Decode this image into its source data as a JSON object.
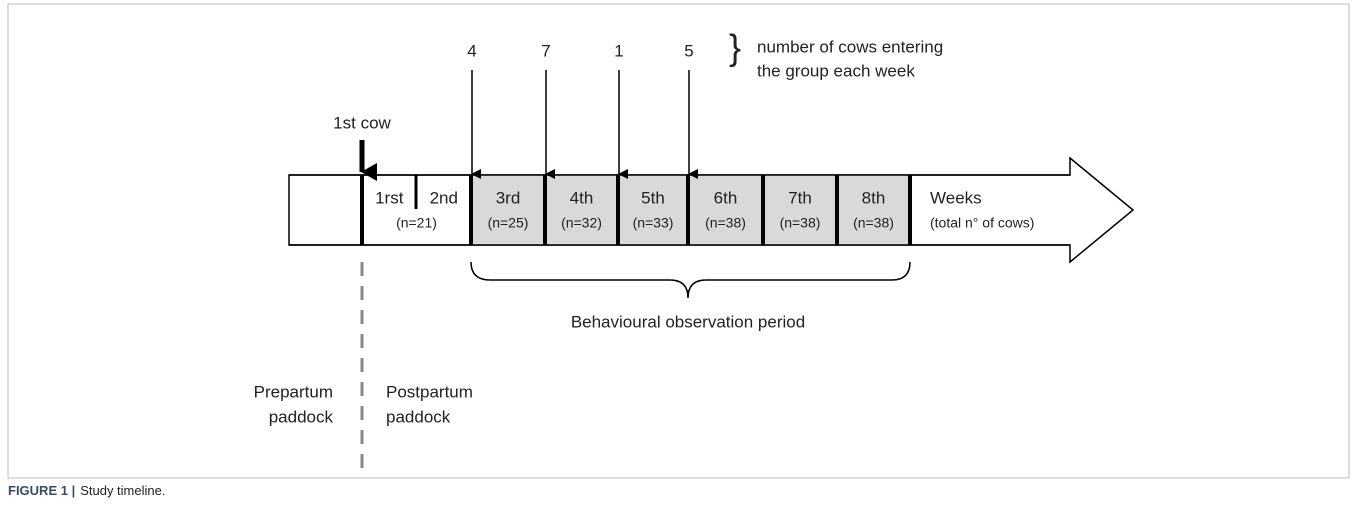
{
  "diagram": {
    "first_cow_label": "1st cow",
    "entering_counts": [
      4,
      7,
      1,
      5
    ],
    "entering_note": [
      "number of cows entering",
      "the group each week"
    ],
    "week_groups": [
      {
        "labels": [
          "1rst",
          "2nd"
        ],
        "n": "(n=21)"
      },
      {
        "labels": [
          "3rd"
        ],
        "n": "(n=25)"
      },
      {
        "labels": [
          "4th"
        ],
        "n": "(n=32)"
      },
      {
        "labels": [
          "5th"
        ],
        "n": "(n=33)"
      },
      {
        "labels": [
          "6th"
        ],
        "n": "(n=38)"
      },
      {
        "labels": [
          "7th"
        ],
        "n": "(n=38)"
      },
      {
        "labels": [
          "8th"
        ],
        "n": "(n=38)"
      }
    ],
    "axis_label": "Weeks",
    "axis_sublabel": "(total n° of cows)",
    "period_label": "Behavioural observation period",
    "left_zone": [
      "Prepartum",
      "paddock"
    ],
    "right_zone": [
      "Postpartum",
      "paddock"
    ]
  },
  "caption": {
    "figure": "FIGURE 1 |",
    "text": "Study timeline."
  }
}
